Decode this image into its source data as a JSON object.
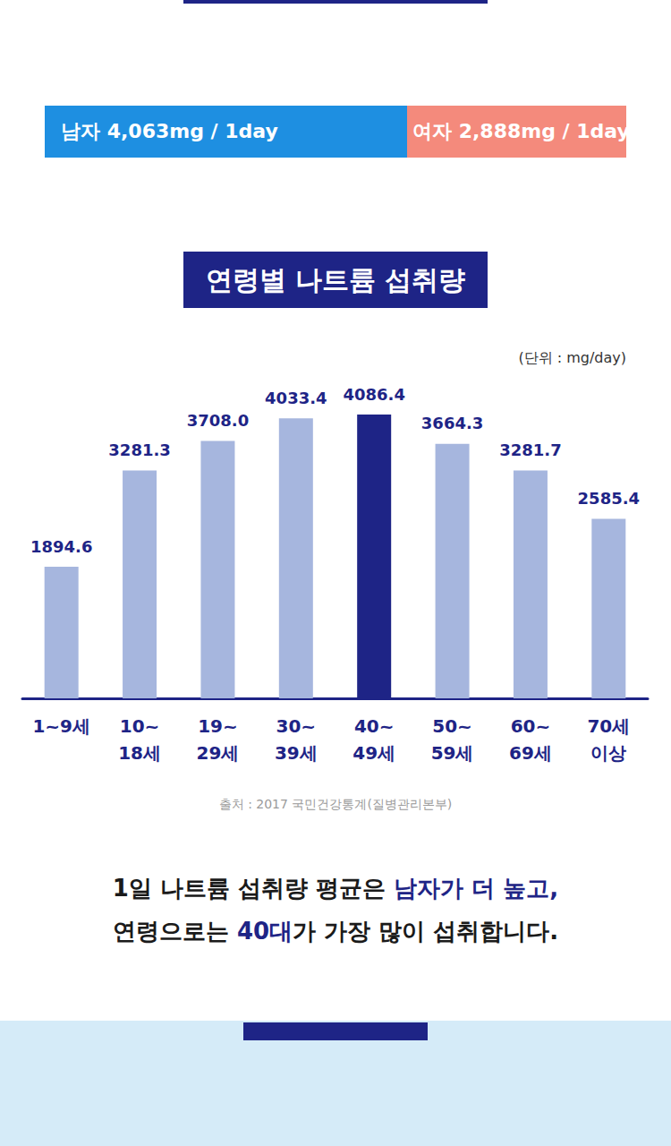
{
  "header": {
    "male": "남자 4,063mg / 1day",
    "female": "여자 2,888mg / 1day"
  },
  "chart_data": {
    "type": "bar",
    "title": "연령별 나트륨 섭취량",
    "subtitle": "(단위 : mg/day)",
    "categories": [
      "1~9세",
      "10~\n18세",
      "19~\n29세",
      "30~\n39세",
      "40~\n49세",
      "50~\n59세",
      "60~\n69세",
      "70세\n이상"
    ],
    "values": [
      1894.6,
      3281.3,
      3708.0,
      4033.4,
      4086.4,
      3664.3,
      3281.7,
      2585.4
    ],
    "value_labels": [
      "1894.6",
      "3281.3",
      "3708.0",
      "4033.4",
      "4086.4",
      "3664.3",
      "3281.7",
      "2585.4"
    ],
    "colors": [
      "#a6b6de",
      "#a6b6de",
      "#a6b6de",
      "#a6b6de",
      "#1e2486",
      "#a6b6de",
      "#a6b6de",
      "#a6b6de"
    ],
    "ylim": [
      0,
      4500
    ],
    "yticks": [
      0,
      1500,
      3000,
      4500
    ],
    "grid": false,
    "data_labels": true,
    "tick_labels": "x"
  },
  "footer": {
    "source": "출처 : 2017 국민건강통계(질병관리본부)",
    "summary": [
      [
        {
          "text": "1일 나트륨 섭취량 평균은 ",
          "highlight": false
        },
        {
          "text": "남자가 더 높고,",
          "highlight": true
        }
      ],
      [
        {
          "text": "연령으로는 ",
          "highlight": false
        },
        {
          "text": "40대",
          "highlight": true
        },
        {
          "text": "가 가장 많이 섭취합니다.",
          "highlight": false
        }
      ]
    ]
  }
}
